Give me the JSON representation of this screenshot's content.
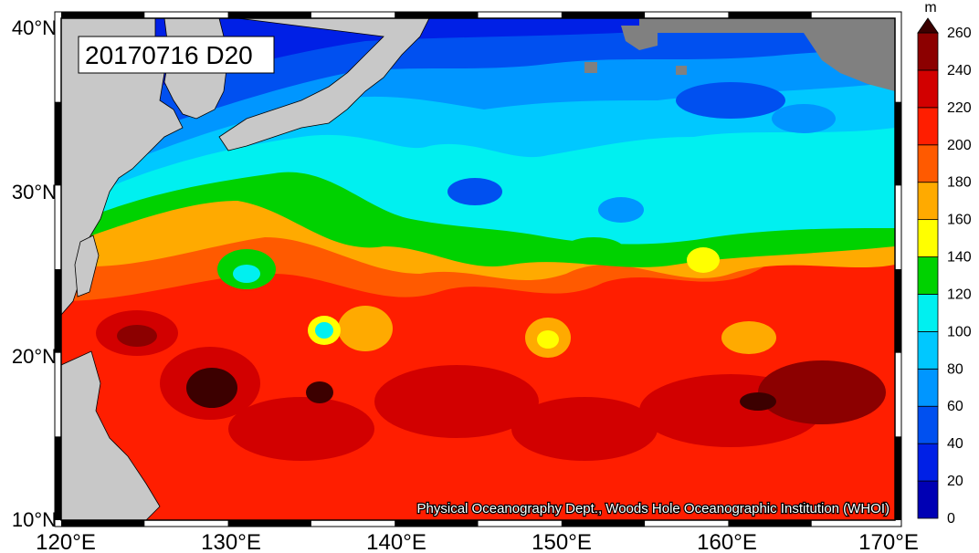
{
  "title": "20170716 D20",
  "credit": "Physical Oceanography Dept., Woods Hole Oceanographic Institution (WHOI)",
  "axes": {
    "lat_labels": [
      "40°N",
      "30°N",
      "20°N",
      "10°N"
    ],
    "lon_labels": [
      "120°E",
      "130°E",
      "140°E",
      "150°E",
      "160°E",
      "170°E"
    ]
  },
  "colorbar": {
    "unit": "m",
    "levels": [
      "0",
      "20",
      "40",
      "60",
      "80",
      "100",
      "120",
      "140",
      "160",
      "180",
      "200",
      "220",
      "240",
      "260"
    ],
    "colors": [
      "#0000b4",
      "#0020e6",
      "#0050f0",
      "#0096ff",
      "#00c8ff",
      "#00f0f0",
      "#00d200",
      "#ffff00",
      "#ffaa00",
      "#ff5a00",
      "#ff1e00",
      "#d20000",
      "#8c0000",
      "#3c0000"
    ]
  },
  "colors": {
    "land": "#c8c8c8",
    "no_data": "#808080"
  }
}
